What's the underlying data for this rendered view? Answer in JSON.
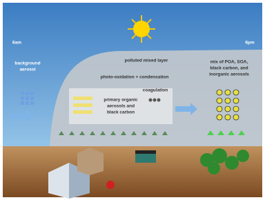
{
  "time_start": "6am",
  "time_end": "6pm",
  "background_aerosol": [
    "background",
    "aerosol"
  ],
  "layer_title": "polluted mixed layer",
  "process": "photo-oxidation + condensation",
  "coagulation": "coagulation",
  "primary": [
    "primary organic",
    "aerosols and",
    "black carbon"
  ],
  "mix": [
    "mix of POA, SOA,",
    "black carbon, and",
    "inorganic aerosols"
  ]
}
